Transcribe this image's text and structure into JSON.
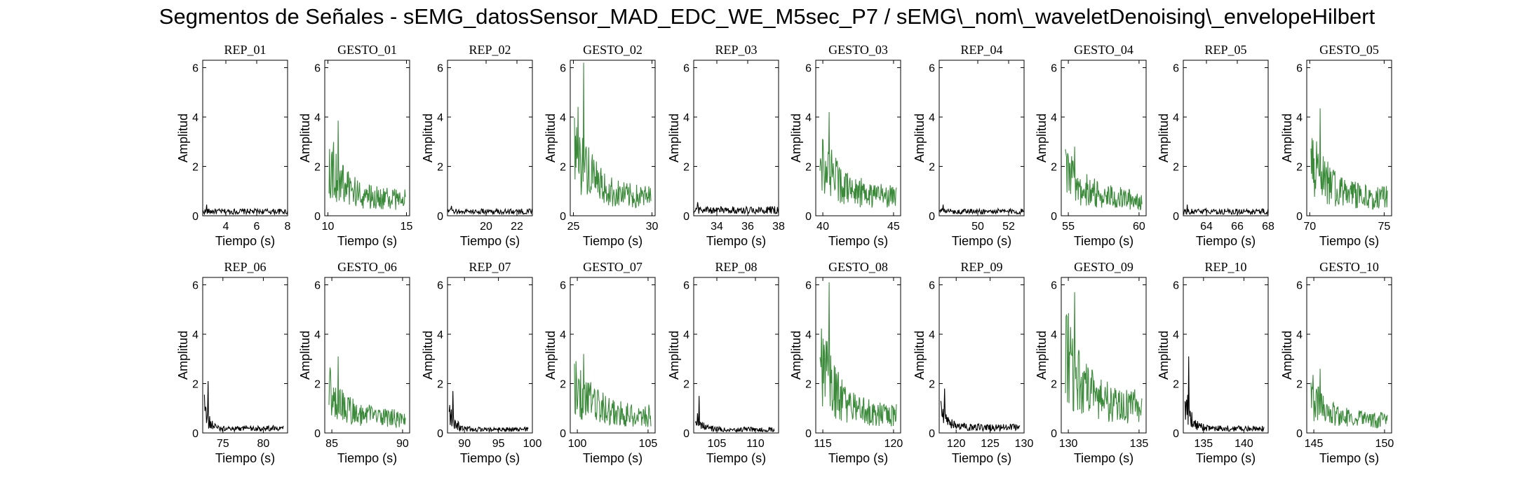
{
  "figure": {
    "title": "Segmentos de Señales - sEMG_datosSensor_MAD_EDC_WE_M5sec_P7 / sEMG\\_nom\\_waveletDenoising\\_envelopeHilbert"
  },
  "colors": {
    "rep": "#000000",
    "gesto": "#3a8a3a",
    "axes": "#000000"
  },
  "chart_data": {
    "type": "line",
    "layout": "grid 2x10",
    "xlabel": "Tiempo (s)",
    "ylabel": "Amplitud",
    "ylim": [
      0,
      6.3
    ],
    "yticks": [
      0,
      2,
      4,
      6
    ],
    "grid": false,
    "panels": [
      {
        "title": "REP_01",
        "kind": "rep",
        "xlim": [
          2.5,
          8
        ],
        "xticks": [
          4,
          6,
          8
        ],
        "peak": 0.45,
        "base": 0.15,
        "decay": 0
      },
      {
        "title": "GESTO_01",
        "kind": "gesto",
        "xlim": [
          9.8,
          15.2
        ],
        "xticks": [
          10,
          15
        ],
        "peak": 3.85,
        "base": 0.9,
        "decay": 0.45
      },
      {
        "title": "REP_02",
        "kind": "rep",
        "xlim": [
          17.5,
          23
        ],
        "xticks": [
          20,
          22
        ],
        "peak": 0.4,
        "base": 0.15,
        "decay": 0
      },
      {
        "title": "GESTO_02",
        "kind": "gesto",
        "xlim": [
          24.8,
          30.2
        ],
        "xticks": [
          25,
          30
        ],
        "peak": 6.2,
        "base": 1.0,
        "decay": 0.45
      },
      {
        "title": "REP_03",
        "kind": "rep",
        "xlim": [
          32.5,
          38
        ],
        "xticks": [
          34,
          36,
          38
        ],
        "peak": 0.55,
        "base": 0.2,
        "decay": 0
      },
      {
        "title": "GESTO_03",
        "kind": "gesto",
        "xlim": [
          39.5,
          45.5
        ],
        "xticks": [
          40,
          45
        ],
        "peak": 4.2,
        "base": 1.0,
        "decay": 0.3
      },
      {
        "title": "REP_04",
        "kind": "rep",
        "xlim": [
          47.5,
          53
        ],
        "xticks": [
          50,
          52
        ],
        "peak": 0.45,
        "base": 0.15,
        "decay": 0
      },
      {
        "title": "GESTO_04",
        "kind": "gesto",
        "xlim": [
          54.5,
          60.5
        ],
        "xticks": [
          55,
          60
        ],
        "peak": 2.8,
        "base": 0.8,
        "decay": 0.1
      },
      {
        "title": "REP_05",
        "kind": "rep",
        "xlim": [
          62.5,
          68
        ],
        "xticks": [
          64,
          66,
          68
        ],
        "peak": 0.45,
        "base": 0.15,
        "decay": 0
      },
      {
        "title": "GESTO_05",
        "kind": "gesto",
        "xlim": [
          69.8,
          75.5
        ],
        "xticks": [
          70,
          75
        ],
        "peak": 4.35,
        "base": 1.0,
        "decay": 0.45
      },
      {
        "title": "REP_06",
        "kind": "rep",
        "xlim": [
          72.5,
          83
        ],
        "xticks": [
          75,
          80
        ],
        "peak": 2.1,
        "base": 0.25,
        "decay": 0.9
      },
      {
        "title": "GESTO_06",
        "kind": "gesto",
        "xlim": [
          84.5,
          90.5
        ],
        "xticks": [
          85,
          90
        ],
        "peak": 3.1,
        "base": 0.8,
        "decay": 0.45
      },
      {
        "title": "REP_07",
        "kind": "rep",
        "xlim": [
          87.5,
          100
        ],
        "xticks": [
          90,
          95,
          100
        ],
        "peak": 1.7,
        "base": 0.2,
        "decay": 0.85
      },
      {
        "title": "GESTO_07",
        "kind": "gesto",
        "xlim": [
          99.5,
          105.5
        ],
        "xticks": [
          100,
          105
        ],
        "peak": 3.2,
        "base": 0.9,
        "decay": 0.25
      },
      {
        "title": "REP_08",
        "kind": "rep",
        "xlim": [
          102,
          113
        ],
        "xticks": [
          105,
          110
        ],
        "peak": 1.5,
        "base": 0.2,
        "decay": 0.85
      },
      {
        "title": "GESTO_08",
        "kind": "gesto",
        "xlim": [
          114.5,
          120.5
        ],
        "xticks": [
          115,
          120
        ],
        "peak": 6.1,
        "base": 1.0,
        "decay": 0.45
      },
      {
        "title": "REP_09",
        "kind": "rep",
        "xlim": [
          117.5,
          130
        ],
        "xticks": [
          120,
          125,
          130
        ],
        "peak": 1.8,
        "base": 0.3,
        "decay": 0.8
      },
      {
        "title": "GESTO_09",
        "kind": "gesto",
        "xlim": [
          129.5,
          135.5
        ],
        "xticks": [
          130,
          135
        ],
        "peak": 5.7,
        "base": 1.4,
        "decay": 0.35
      },
      {
        "title": "REP_10",
        "kind": "rep",
        "xlim": [
          132.5,
          143
        ],
        "xticks": [
          135,
          140
        ],
        "peak": 3.1,
        "base": 0.25,
        "decay": 0.85
      },
      {
        "title": "GESTO_10",
        "kind": "gesto",
        "xlim": [
          144.5,
          150.5
        ],
        "xticks": [
          145,
          150
        ],
        "peak": 2.6,
        "base": 0.7,
        "decay": 0.45
      }
    ]
  }
}
